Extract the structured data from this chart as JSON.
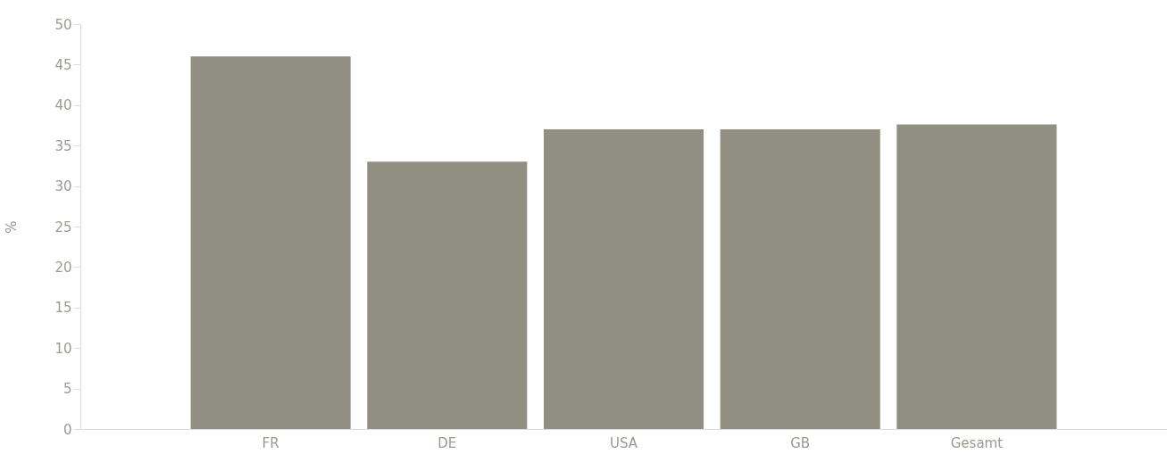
{
  "chart_data": {
    "type": "bar",
    "ylabel": "%",
    "categories": [
      "FR",
      "DE",
      "USA",
      "GB",
      "Gesamt"
    ],
    "values": [
      46,
      33,
      37,
      37,
      37.6
    ],
    "color": "#918f82",
    "ylim": [
      0,
      50
    ],
    "yticks": [
      0,
      5,
      10,
      15,
      20,
      25,
      30,
      35,
      40,
      45,
      50
    ],
    "grid": false
  }
}
